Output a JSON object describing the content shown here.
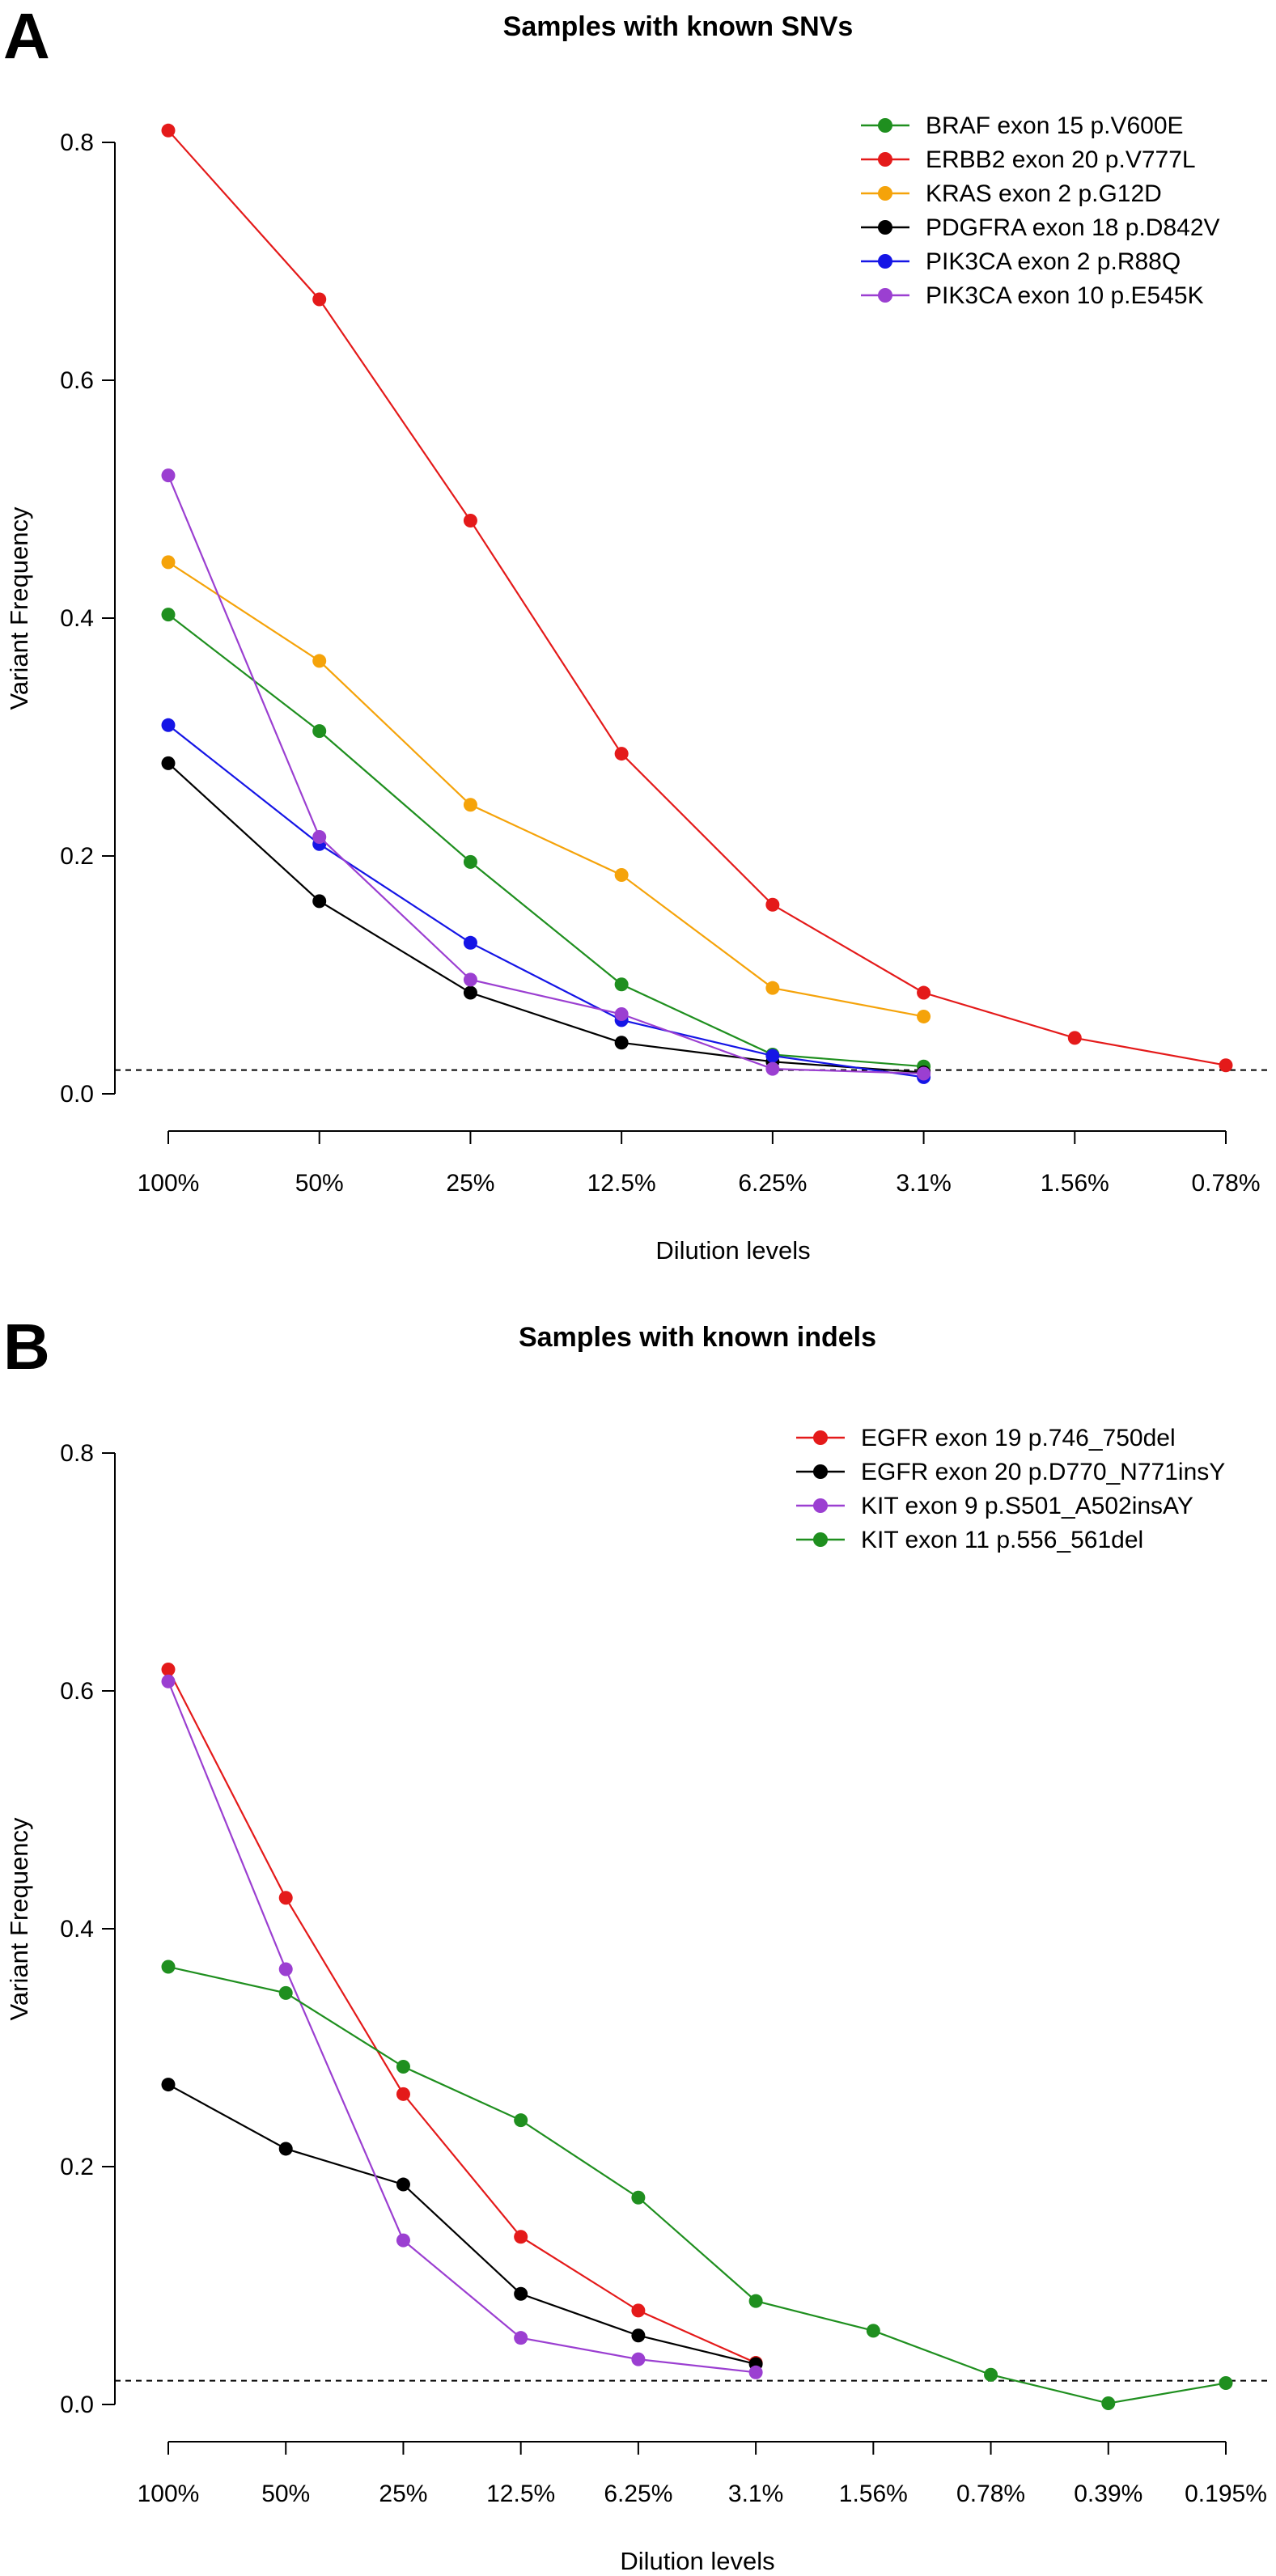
{
  "panels": [
    {
      "letter": "A"
    },
    {
      "letter": "B"
    }
  ],
  "chart_data": [
    {
      "type": "line",
      "title": "Samples with known SNVs",
      "xlabel": "Dilution levels",
      "ylabel": "Variant Frequency",
      "categories": [
        "100%",
        "50%",
        "25%",
        "12.5%",
        "6.25%",
        "3.1%",
        "1.56%",
        "0.78%"
      ],
      "ylim": [
        0,
        0.8
      ],
      "yticks": [
        "0.0",
        "0.2",
        "0.4",
        "0.6",
        "0.8"
      ],
      "threshold": 0.02,
      "legend_position": "top-right",
      "grid": false,
      "series": [
        {
          "name": "BRAF exon 15 p.V600E",
          "color": "#1f8f1f",
          "values": [
            0.403,
            0.305,
            0.195,
            0.092,
            0.033,
            0.023,
            null,
            null
          ]
        },
        {
          "name": "ERBB2 exon 20 p.V777L",
          "color": "#e41a1a",
          "values": [
            0.81,
            0.668,
            0.482,
            0.286,
            0.159,
            0.085,
            0.047,
            0.024
          ]
        },
        {
          "name": "KRAS exon 2 p.G12D",
          "color": "#f5a30a",
          "values": [
            0.447,
            0.364,
            0.243,
            0.184,
            0.089,
            0.065,
            null,
            null
          ]
        },
        {
          "name": "PDGFRA exon 18 p.D842V",
          "color": "#000000",
          "values": [
            0.278,
            0.162,
            0.085,
            0.043,
            0.027,
            0.018,
            null,
            null
          ]
        },
        {
          "name": "PIK3CA exon 2 p.R88Q",
          "color": "#1515e6",
          "values": [
            0.31,
            0.21,
            0.127,
            0.062,
            0.032,
            0.014,
            null,
            null
          ]
        },
        {
          "name": "PIK3CA exon 10 p.E545K",
          "color": "#9b3fd1",
          "values": [
            0.52,
            0.216,
            0.096,
            0.067,
            0.021,
            0.017,
            null,
            null
          ]
        }
      ]
    },
    {
      "type": "line",
      "title": "Samples with known indels",
      "xlabel": "Dilution levels",
      "ylabel": "Variant Frequency",
      "categories": [
        "100%",
        "50%",
        "25%",
        "12.5%",
        "6.25%",
        "3.1%",
        "1.56%",
        "0.78%",
        "0.39%",
        "0.195%"
      ],
      "ylim": [
        0,
        0.8
      ],
      "yticks": [
        "0.0",
        "0.2",
        "0.4",
        "0.6",
        "0.8"
      ],
      "threshold": 0.02,
      "legend_position": "top-right",
      "grid": false,
      "series": [
        {
          "name": "EGFR exon 19 p.746_750del",
          "color": "#e41a1a",
          "values": [
            0.618,
            0.426,
            0.261,
            0.141,
            0.079,
            0.035,
            null,
            null,
            null,
            null
          ]
        },
        {
          "name": "EGFR exon 20 p.D770_N771insY",
          "color": "#000000",
          "values": [
            0.269,
            0.215,
            0.185,
            0.093,
            0.058,
            0.034,
            null,
            null,
            null,
            null
          ]
        },
        {
          "name": "KIT exon 9 p.S501_A502insAY",
          "color": "#9b3fd1",
          "values": [
            0.608,
            0.366,
            0.138,
            0.056,
            0.038,
            0.027,
            null,
            null,
            null,
            null
          ]
        },
        {
          "name": "KIT exon 11 p.556_561del",
          "color": "#1f8f1f",
          "values": [
            0.368,
            0.346,
            0.284,
            0.239,
            0.174,
            0.087,
            0.062,
            0.025,
            0.001,
            0.018
          ]
        }
      ]
    }
  ]
}
